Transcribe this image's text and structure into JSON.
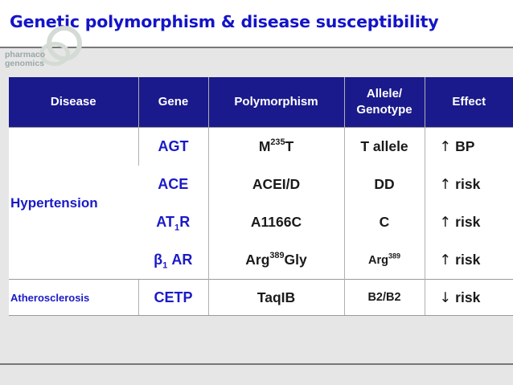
{
  "title": "Genetic polymorphism & disease susceptibility",
  "logo": {
    "line1": "pharmaco",
    "line2": "genomics"
  },
  "headers": {
    "disease": "Disease",
    "gene": "Gene",
    "polymorphism": "Polymorphism",
    "allele_line1": "Allele/",
    "allele_line2": "Genotype",
    "effect": "Effect"
  },
  "rows": [
    {
      "disease": "Hypertension",
      "gene": "AGT",
      "poly_pre": "M",
      "poly_sup": "235",
      "poly_post": "T",
      "allele": "T allele",
      "effect_arrow": "↑",
      "effect": "BP"
    },
    {
      "gene": "ACE",
      "poly": "ACEI/D",
      "allele": "DD",
      "effect_arrow": "↑",
      "effect": "risk"
    },
    {
      "gene_pre": "AT",
      "gene_sub": "1",
      "gene_post": "R",
      "poly": "A1166C",
      "allele": "C",
      "effect_arrow": "↑",
      "effect": "risk"
    },
    {
      "gene_pre": "β",
      "gene_sub": "1",
      "gene_post": " AR",
      "poly_pre": "Arg",
      "poly_sup": "389",
      "poly_post": "Gly",
      "allele_pre": "Arg",
      "allele_sup": "389",
      "effect_arrow": "↑",
      "effect": "risk"
    },
    {
      "disease": "Atherosclerosis",
      "gene": "CETP",
      "poly": "TaqIB",
      "allele": "B2/B2",
      "effect_arrow": "↓",
      "effect": "risk"
    }
  ]
}
